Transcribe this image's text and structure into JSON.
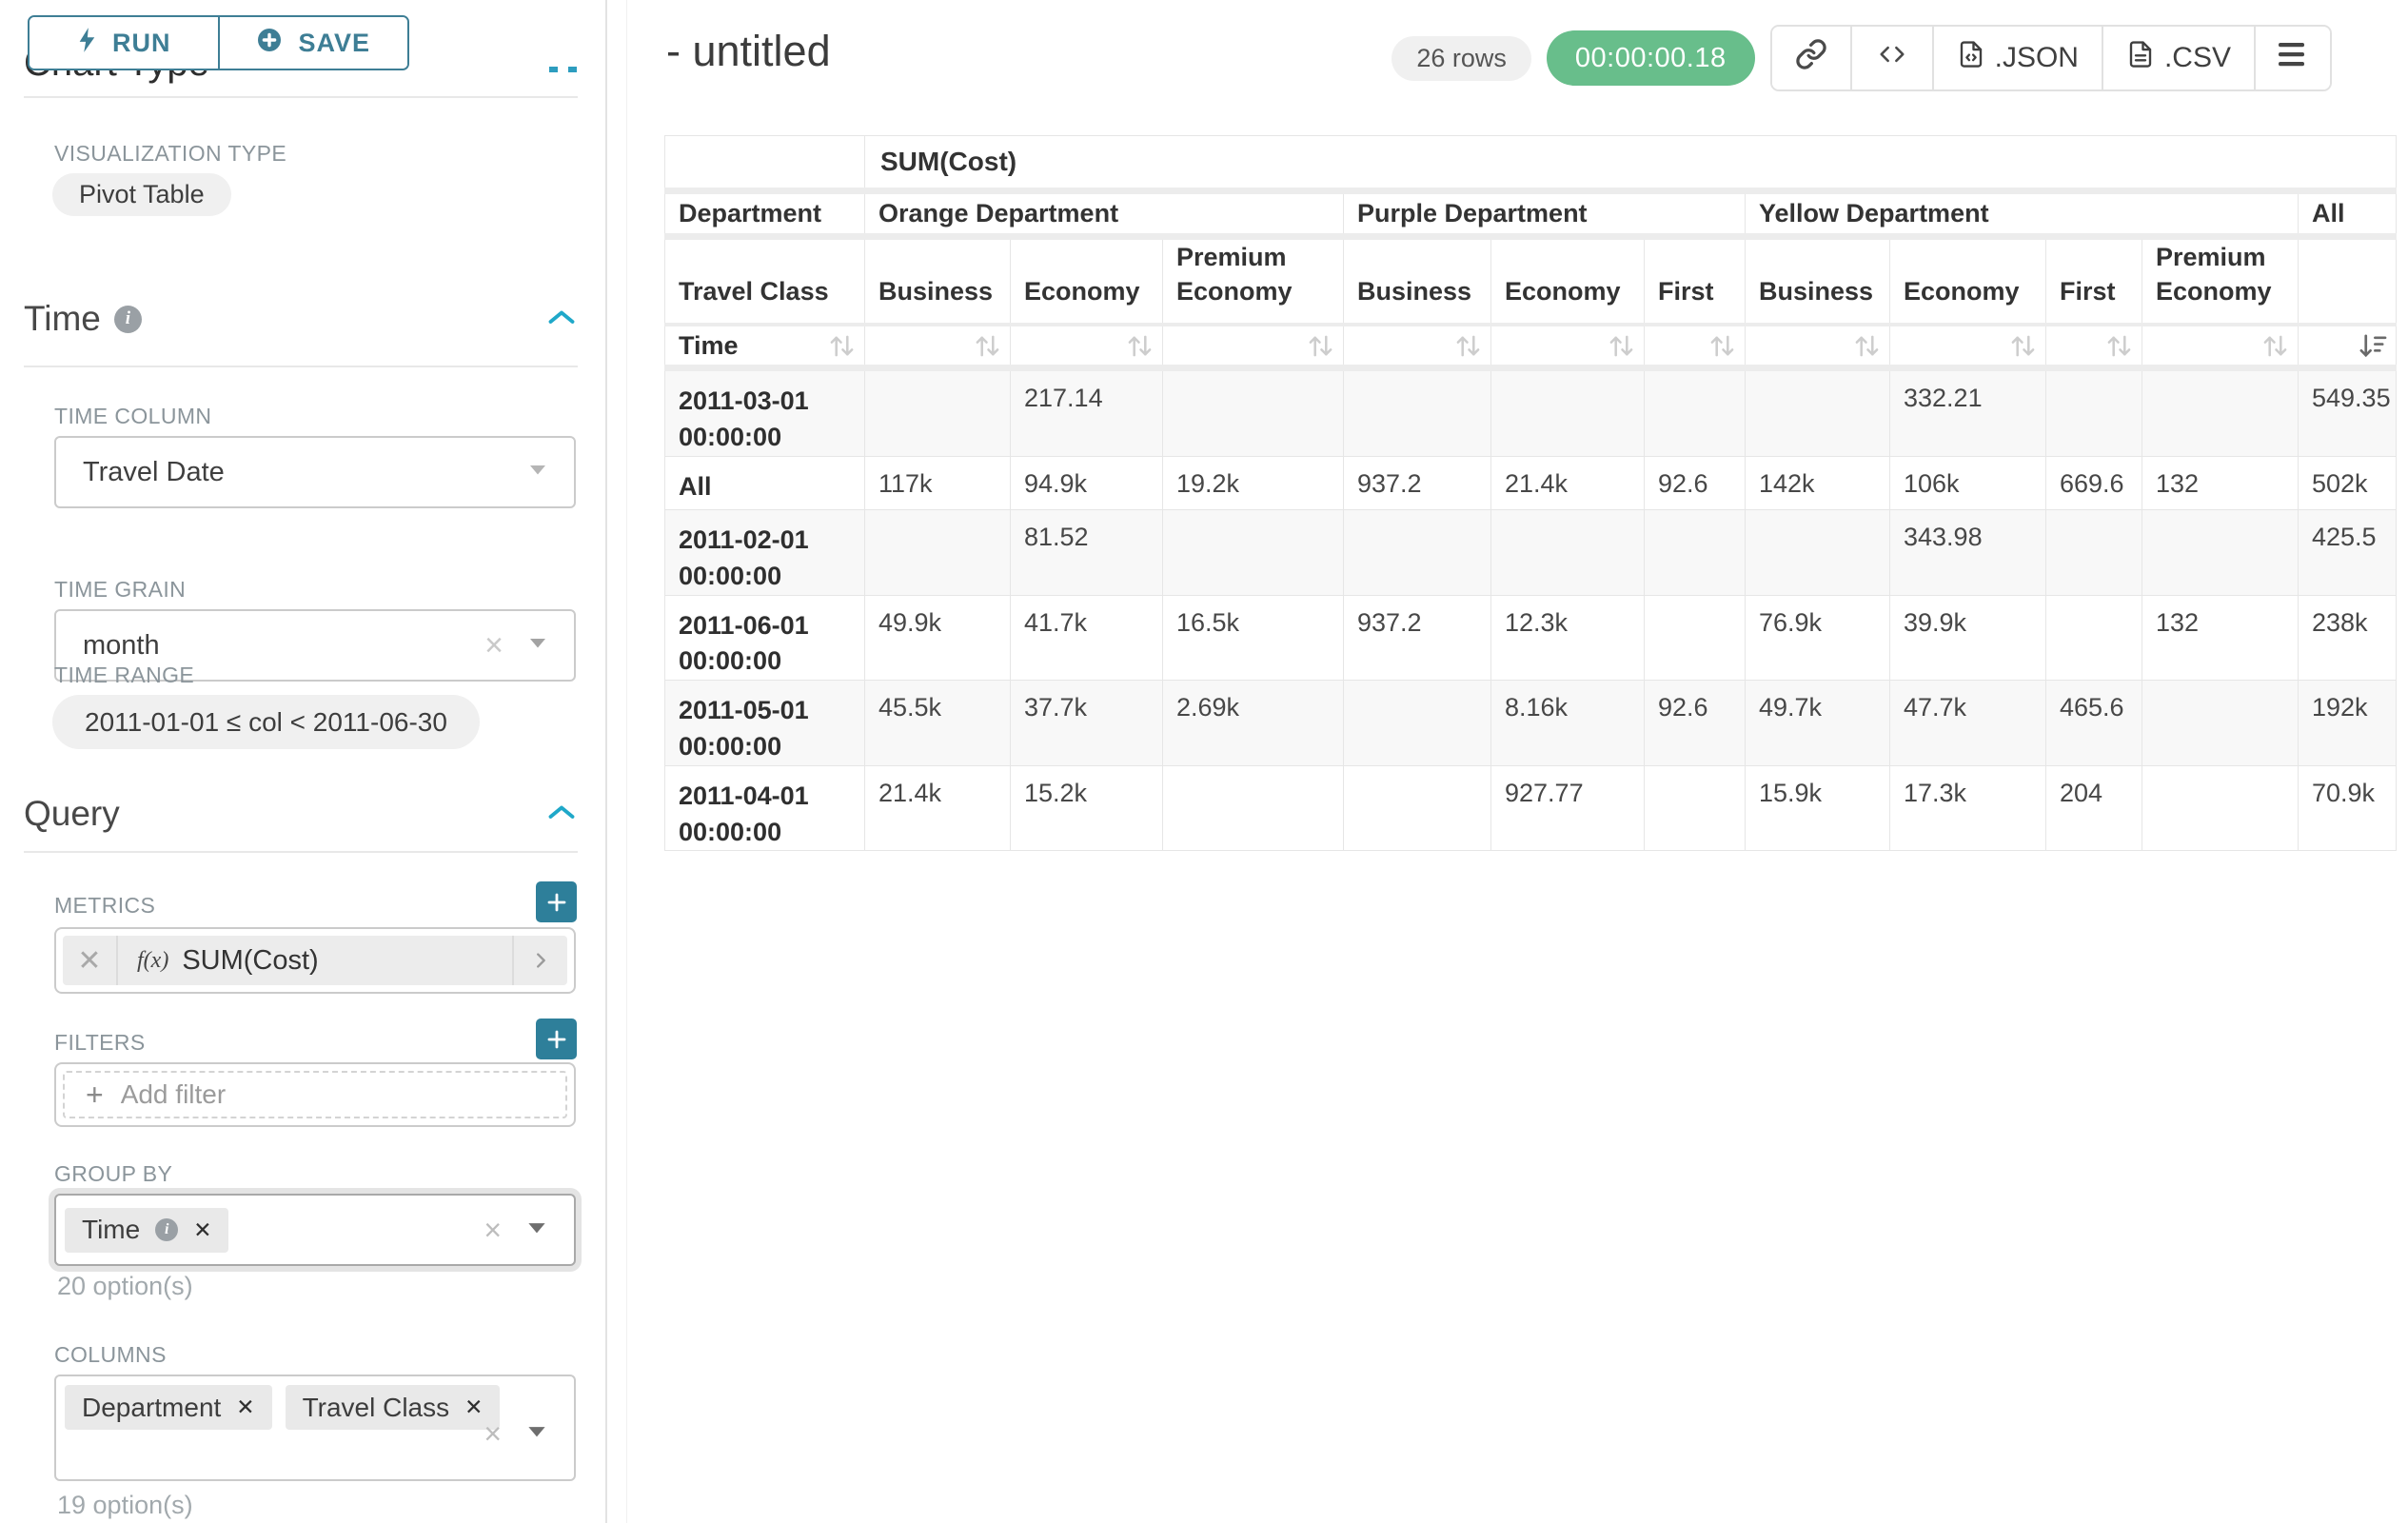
{
  "colors": {
    "accent_teal": "#3e7e95",
    "plus_button_teal": "#2e7f9a",
    "chevron_blue": "#1fa8c9",
    "timer_green": "#68be8b",
    "label_gray": "#8b959b",
    "stripe_gray": "#f8f8f8"
  },
  "toolbar": {
    "run": "RUN",
    "save": "SAVE"
  },
  "sidebar": {
    "chart_type_heading": "Chart Type",
    "viz_type_label": "VISUALIZATION TYPE",
    "viz_type_value": "Pivot Table",
    "time": {
      "title": "Time",
      "column_label": "TIME COLUMN",
      "column_value": "Travel Date",
      "grain_label": "TIME GRAIN",
      "grain_value": "month",
      "range_label": "TIME RANGE",
      "range_value": "2011-01-01 ≤ col < 2011-06-30"
    },
    "query": {
      "title": "Query",
      "metrics_label": "METRICS",
      "metric_fx": "f(x)",
      "metric_value": "SUM(Cost)",
      "filters_label": "FILTERS",
      "add_filter": "Add filter",
      "group_by_label": "GROUP BY",
      "group_by_tags": [
        {
          "label": "Time"
        }
      ],
      "group_by_hint": "20 option(s)",
      "columns_label": "COLUMNS",
      "columns_tags": [
        {
          "label": "Department"
        },
        {
          "label": "Travel Class"
        }
      ],
      "columns_hint": "19 option(s)"
    }
  },
  "header": {
    "title": "- untitled",
    "rows_badge": "26 rows",
    "timer": "00:00:00.18",
    "export_json": ".JSON",
    "export_csv": ".CSV"
  },
  "chart_data": {
    "type": "table",
    "metric_header": "SUM(Cost)",
    "corner_row1": "Department",
    "corner_row2": "Travel Class",
    "corner_row3": "Time",
    "column_groups": [
      {
        "label": "Orange Department",
        "children": [
          "Business",
          "Economy",
          "Premium Economy"
        ]
      },
      {
        "label": "Purple Department",
        "children": [
          "Business",
          "Economy",
          "First"
        ]
      },
      {
        "label": "Yellow Department",
        "children": [
          "Business",
          "Economy",
          "First",
          "Premium Economy"
        ]
      },
      {
        "label": "All",
        "children": [
          ""
        ]
      }
    ],
    "sort": {
      "column_index": 10,
      "direction": "desc"
    },
    "rows": [
      {
        "label": "2011-03-01 00:00:00",
        "values": [
          "",
          "217.14",
          "",
          "",
          "",
          "",
          "",
          "332.21",
          "",
          "",
          "549.35"
        ]
      },
      {
        "label": "All",
        "values": [
          "117k",
          "94.9k",
          "19.2k",
          "937.2",
          "21.4k",
          "92.6",
          "142k",
          "106k",
          "669.6",
          "132",
          "502k"
        ]
      },
      {
        "label": "2011-02-01 00:00:00",
        "values": [
          "",
          "81.52",
          "",
          "",
          "",
          "",
          "",
          "343.98",
          "",
          "",
          "425.5"
        ]
      },
      {
        "label": "2011-06-01 00:00:00",
        "values": [
          "49.9k",
          "41.7k",
          "16.5k",
          "937.2",
          "12.3k",
          "",
          "76.9k",
          "39.9k",
          "",
          "132",
          "238k"
        ]
      },
      {
        "label": "2011-05-01 00:00:00",
        "values": [
          "45.5k",
          "37.7k",
          "2.69k",
          "",
          "8.16k",
          "92.6",
          "49.7k",
          "47.7k",
          "465.6",
          "",
          "192k"
        ]
      },
      {
        "label": "2011-04-01 00:00:00",
        "values": [
          "21.4k",
          "15.2k",
          "",
          "",
          "927.77",
          "",
          "15.9k",
          "17.3k",
          "204",
          "",
          "70.9k"
        ]
      }
    ]
  }
}
